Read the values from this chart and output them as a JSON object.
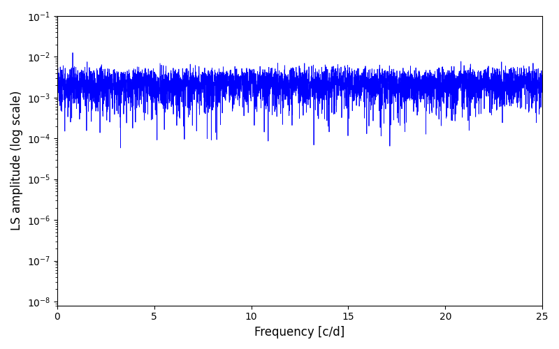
{
  "title": "",
  "xlabel": "Frequency [c/d]",
  "ylabel": "LS amplitude (log scale)",
  "xlim": [
    0,
    25
  ],
  "ylim": [
    8e-09,
    0.1
  ],
  "line_color": "#0000ff",
  "line_width": 0.6,
  "background_color": "#ffffff",
  "freq_min": 0.001,
  "freq_max": 25.0,
  "n_points": 5000,
  "seed": 12345,
  "n_obs": 500,
  "t_span": 400.0,
  "noise_level": 0.04
}
